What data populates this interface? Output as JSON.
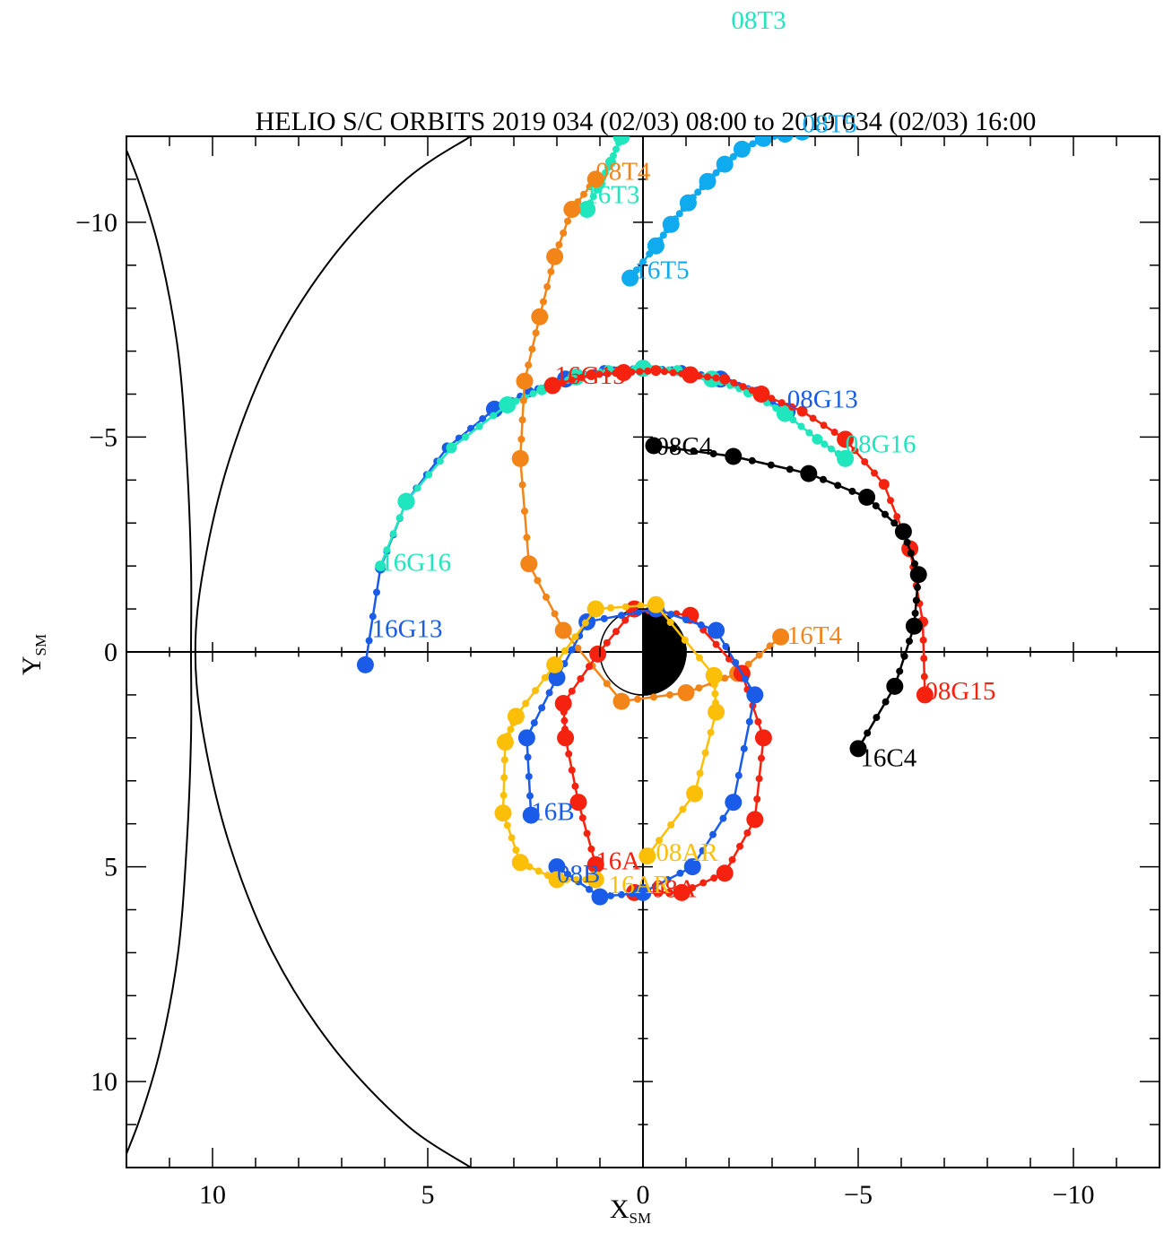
{
  "chart_data": {
    "type": "scatter",
    "title": "HELIO S/C ORBITS 2019 034 (02/03) 08:00 to 2019 034 (02/03) 16:00",
    "xlabel": {
      "main": "X",
      "sub": "SM"
    },
    "ylabel": {
      "main": "Y",
      "sub": "SM"
    },
    "xlim": [
      12,
      -12
    ],
    "ylim": [
      12,
      -12
    ],
    "x_reversed": true,
    "y_reversed": true,
    "x_ticks": [
      10,
      5,
      0,
      -5,
      -10
    ],
    "x_tick_labels": [
      "10",
      "5",
      "0",
      "−5",
      "−10"
    ],
    "y_ticks": [
      -10,
      -5,
      0,
      5,
      10
    ],
    "y_tick_labels": [
      "−10",
      "−5",
      "0",
      "5",
      "10"
    ],
    "grid": false,
    "earth_radius": 1.0,
    "colors": {
      "axis": "#000000",
      "G13": "#1a5ce8",
      "G15": "#f5220f",
      "G16": "#1fe6bd",
      "T3": "#1fe6bd",
      "T4": "#f28418",
      "T5": "#10aaee",
      "C4": "#000000",
      "A": "#f5220f",
      "B": "#1a5ce8",
      "AR": "#fcbf08"
    },
    "boundaries": [
      {
        "name": "magnetopause",
        "points": [
          [
            12.3,
            -12.4
          ],
          [
            11.7,
            -10.9
          ],
          [
            11.2,
            -9.2
          ],
          [
            10.8,
            -7
          ],
          [
            10.6,
            -4.5
          ],
          [
            10.5,
            -2
          ],
          [
            10.5,
            0
          ],
          [
            10.5,
            2
          ],
          [
            10.6,
            4.5
          ],
          [
            10.8,
            7
          ],
          [
            11.2,
            9.2
          ],
          [
            11.7,
            10.9
          ],
          [
            12.3,
            12.4
          ]
        ]
      },
      {
        "name": "bow-shock",
        "points": [
          [
            4,
            -12
          ],
          [
            5.5,
            -11
          ],
          [
            7.2,
            -9.2
          ],
          [
            8.6,
            -7
          ],
          [
            9.6,
            -4.5
          ],
          [
            10.2,
            -2
          ],
          [
            10.4,
            0
          ],
          [
            10.2,
            2
          ],
          [
            9.6,
            4.5
          ],
          [
            8.6,
            7
          ],
          [
            7.2,
            9.2
          ],
          [
            5.5,
            11
          ],
          [
            4,
            12
          ]
        ]
      }
    ],
    "series": [
      {
        "name": "G13",
        "color_key": "G13",
        "start_label": "08G13",
        "end_label": "16G13",
        "start_label_at": [
          -3.35,
          -5.9
        ],
        "end_label_at": [
          6.3,
          -0.55
        ],
        "points": [
          [
            -3.35,
            -5.6
          ],
          [
            -2.65,
            -6.05
          ],
          [
            -1.8,
            -6.35
          ],
          [
            -0.9,
            -6.55
          ],
          [
            0,
            -6.6
          ],
          [
            0.9,
            -6.55
          ],
          [
            1.8,
            -6.35
          ],
          [
            2.65,
            -6.05
          ],
          [
            3.45,
            -5.65
          ],
          [
            4.55,
            -4.75
          ],
          [
            5.5,
            -3.5
          ],
          [
            6.1,
            -1.95
          ],
          [
            6.45,
            0.3
          ]
        ],
        "big_every": 2
      },
      {
        "name": "G16",
        "color_key": "G16",
        "start_label": "08G16",
        "end_label": "16G16",
        "start_label_at": [
          -4.7,
          -4.85
        ],
        "end_label_at": [
          6.1,
          -2.1
        ],
        "points": [
          [
            -4.7,
            -4.5
          ],
          [
            -4.05,
            -4.95
          ],
          [
            -3.3,
            -5.55
          ],
          [
            -2.45,
            -6.05
          ],
          [
            -1.6,
            -6.35
          ],
          [
            -0.8,
            -6.55
          ],
          [
            0,
            -6.6
          ],
          [
            0.8,
            -6.55
          ],
          [
            1.55,
            -6.4
          ],
          [
            2.35,
            -6.1
          ],
          [
            3.15,
            -5.75
          ],
          [
            4.45,
            -4.75
          ],
          [
            5.5,
            -3.5
          ],
          [
            6.1,
            -2.0
          ]
        ],
        "big_every": 2
      },
      {
        "name": "G15",
        "color_key": "G15",
        "start_label": "08G15",
        "end_label": "16G15",
        "start_label_at": [
          -6.55,
          0.9
        ],
        "end_label_at": [
          2.05,
          -6.45
        ],
        "points": [
          [
            -6.55,
            1.0
          ],
          [
            -6.5,
            -0.7
          ],
          [
            -6.2,
            -2.4
          ],
          [
            -5.6,
            -3.9
          ],
          [
            -4.7,
            -4.95
          ],
          [
            -3.7,
            -5.6
          ],
          [
            -2.75,
            -6.0
          ],
          [
            -1.9,
            -6.35
          ],
          [
            -1.1,
            -6.45
          ],
          [
            -0.3,
            -6.55
          ],
          [
            0.45,
            -6.5
          ],
          [
            1.2,
            -6.45
          ],
          [
            2.1,
            -6.2
          ]
        ],
        "big_every": 2
      },
      {
        "name": "C4",
        "color_key": "C4",
        "start_label": "08C4",
        "end_label": "16C4",
        "start_label_at": [
          -0.3,
          -4.8
        ],
        "end_label_at": [
          -5.05,
          2.45
        ],
        "points": [
          [
            -0.25,
            -4.8
          ],
          [
            -2.1,
            -4.55
          ],
          [
            -3.85,
            -4.15
          ],
          [
            -5.2,
            -3.6
          ],
          [
            -6.05,
            -2.8
          ],
          [
            -6.4,
            -1.8
          ],
          [
            -6.3,
            -0.6
          ],
          [
            -5.85,
            0.8
          ],
          [
            -5.0,
            2.25
          ]
        ],
        "big_every": 1
      },
      {
        "name": "T5",
        "color_key": "T5",
        "start_label": "08T5",
        "end_label": "16T5",
        "start_label_at": [
          -3.7,
          -12.3
        ],
        "end_label_at": [
          0.2,
          -8.9
        ],
        "points": [
          [
            -3.7,
            -12.1
          ],
          [
            -3.3,
            -12.05
          ],
          [
            -2.8,
            -11.95
          ],
          [
            -2.3,
            -11.7
          ],
          [
            -1.9,
            -11.35
          ],
          [
            -1.5,
            -10.95
          ],
          [
            -1.05,
            -10.45
          ],
          [
            -0.65,
            -9.95
          ],
          [
            -0.3,
            -9.45
          ],
          [
            0.3,
            -8.7
          ]
        ],
        "big_every": 1
      },
      {
        "name": "T3",
        "color_key": "T3",
        "start_label": "08T3",
        "end_label": "16T3",
        "start_label_at": [
          -2.4,
          -16.2
        ],
        "end_label_at": [
          1.35,
          -10.65
        ],
        "points": [
          [
            0.5,
            -12.0
          ],
          [
            0.75,
            -11.4
          ],
          [
            1.0,
            -10.9
          ],
          [
            1.3,
            -10.3
          ]
        ],
        "big_every": 3
      },
      {
        "name": "T4",
        "color_key": "T4",
        "start_label": "08T4",
        "end_label": "16T4",
        "start_label_at": [
          1.1,
          -11.2
        ],
        "end_label_at": [
          -3.35,
          -0.4
        ],
        "points": [
          [
            1.1,
            -11.0
          ],
          [
            1.65,
            -10.3
          ],
          [
            2.05,
            -9.2
          ],
          [
            2.4,
            -7.8
          ],
          [
            2.75,
            -6.3
          ],
          [
            2.85,
            -4.5
          ],
          [
            2.65,
            -2.05
          ],
          [
            1.85,
            -0.5
          ],
          [
            0.5,
            1.15
          ],
          [
            -1.0,
            0.95
          ],
          [
            -2.2,
            0.5
          ],
          [
            -3.2,
            -0.35
          ]
        ],
        "big_every": 1
      },
      {
        "name": "A",
        "color_key": "A",
        "start_label": "16A",
        "end_label": "08A",
        "start_label_at": [
          1.1,
          4.85
        ],
        "end_label_at": [
          -0.2,
          5.5
        ],
        "points": [
          [
            1.1,
            4.95
          ],
          [
            1.5,
            3.5
          ],
          [
            1.8,
            2.0
          ],
          [
            1.85,
            1.2
          ],
          [
            1.05,
            0.05
          ],
          [
            0.2,
            -1.0
          ],
          [
            -1.1,
            -0.85
          ],
          [
            -2.3,
            0.5
          ],
          [
            -2.8,
            2.0
          ],
          [
            -2.6,
            3.9
          ],
          [
            -1.9,
            5.15
          ],
          [
            -0.9,
            5.6
          ],
          [
            0.2,
            5.6
          ]
        ],
        "big_every": 1
      },
      {
        "name": "B",
        "color_key": "B",
        "start_label": "08B",
        "end_label": "16B",
        "start_label_at": [
          2.0,
          5.15
        ],
        "end_label_at": [
          2.6,
          3.7
        ],
        "points": [
          [
            2.0,
            5.0
          ],
          [
            1.0,
            5.7
          ],
          [
            0,
            5.6
          ],
          [
            -1.15,
            5.0
          ],
          [
            -2.1,
            3.5
          ],
          [
            -2.6,
            1.0
          ],
          [
            -1.7,
            -0.5
          ],
          [
            -0.3,
            -1.0
          ],
          [
            1.3,
            -0.7
          ],
          [
            2.0,
            0.6
          ],
          [
            2.7,
            2.0
          ],
          [
            2.6,
            3.8
          ]
        ],
        "big_every": 1
      },
      {
        "name": "AR",
        "color_key": "AR",
        "start_label": "08AR",
        "end_label": "16AR",
        "start_label_at": [
          -0.3,
          4.65
        ],
        "end_label_at": [
          0.8,
          5.4
        ],
        "points": [
          [
            -0.1,
            4.75
          ],
          [
            -1.2,
            3.3
          ],
          [
            -1.7,
            1.4
          ],
          [
            -1.65,
            0.55
          ],
          [
            -0.3,
            -1.1
          ],
          [
            1.1,
            -1.0
          ],
          [
            2.05,
            0.3
          ],
          [
            2.95,
            1.5
          ],
          [
            3.2,
            2.1
          ],
          [
            3.25,
            3.75
          ],
          [
            2.85,
            4.9
          ],
          [
            2.0,
            5.3
          ],
          [
            1.1,
            5.3
          ]
        ],
        "big_every": 1
      }
    ],
    "annotation": "08T3"
  }
}
